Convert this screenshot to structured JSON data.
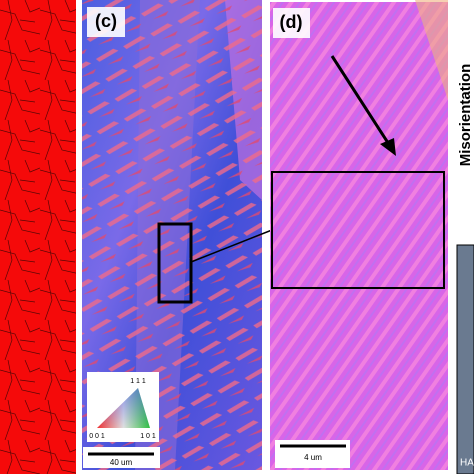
{
  "panels": [
    {
      "label": "(c)",
      "scale_bar": "40 um",
      "legend": {
        "top": "1 1 1",
        "left": "0 0 1",
        "right": "1 0 1"
      }
    },
    {
      "label": "(d)",
      "scale_bar": "4 um"
    }
  ],
  "side_label": "Misorientation",
  "inset_label": "HA"
}
